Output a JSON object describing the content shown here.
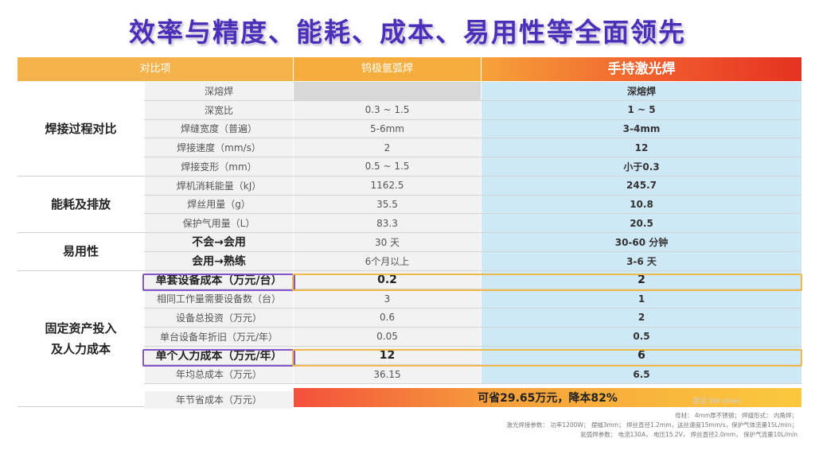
{
  "title": "效率与精度、能耗、成本、易用性等全面领先",
  "header": {
    "item": "对比项",
    "tig": "钨极氩弧焊",
    "laser": "手持激光焊"
  },
  "categories": {
    "welding": "焊接过程对比",
    "energy": "能耗及排放",
    "usability": "易用性",
    "cost_line1": "固定资产投入",
    "cost_line2": "及人力成本"
  },
  "rows": [
    {
      "item": "深熔焊",
      "tig": "",
      "laser": "深熔焊"
    },
    {
      "item": "深宽比",
      "tig": "0.3 ~ 1.5",
      "laser": "1 ~ 5"
    },
    {
      "item": "焊缝宽度（普遍）",
      "tig": "5-6mm",
      "laser": "3-4mm"
    },
    {
      "item": "焊接速度（mm/s）",
      "tig": "2",
      "laser": "12"
    },
    {
      "item": "焊接变形（mm）",
      "tig": "0.5 ~ 1.5",
      "laser": "小于0.3"
    },
    {
      "item": "焊机消耗能量（kJ）",
      "tig": "1162.5",
      "laser": "245.7"
    },
    {
      "item": "焊丝用量（g）",
      "tig": "35.5",
      "laser": "10.8"
    },
    {
      "item": "保护气用量（L）",
      "tig": "83.3",
      "laser": "20.5"
    },
    {
      "item": "不会→会用",
      "tig": "30 天",
      "laser": "30-60 分钟"
    },
    {
      "item": "会用→熟练",
      "tig": "6个月以上",
      "laser": "3-6 天"
    },
    {
      "item": "单套设备成本（万元/台）",
      "tig": "0.2",
      "laser": "2"
    },
    {
      "item": "相同工作量需要设备数（台）",
      "tig": "3",
      "laser": "1"
    },
    {
      "item": "设备总投资（万元）",
      "tig": "0.6",
      "laser": "2"
    },
    {
      "item": "单台设备年折旧（万元/年）",
      "tig": "0.05",
      "laser": "0.5"
    },
    {
      "item": "单个人力成本（万元/年）",
      "tig": "12",
      "laser": "6"
    },
    {
      "item": "年均总成本（万元）",
      "tig": "36.15",
      "laser": "6.5"
    }
  ],
  "saving": {
    "item": "年节省成本（万元）",
    "value": "可省29.65万元，降本82%"
  },
  "notes": {
    "line1": "母材：  4mm厚不锈钢；  焊缝形式：  内角焊；",
    "line2": "激光焊接参数：  功率1200W；  摆幅3mm；  焊丝直径1.2mm，送丝速度15mm/s，保护气体流量15L/min；",
    "line3": "氩弧焊参数：  电流130A，  电压15.2V，  焊丝直径2.0mm，  保护气流量10L/min"
  },
  "watermark": "激活 Windows",
  "colors": {
    "title": "#4b2fb8",
    "laser_cell": "#cfe8f5",
    "highlight_purple": "#8455c8",
    "highlight_gold": "#f0b94b"
  }
}
